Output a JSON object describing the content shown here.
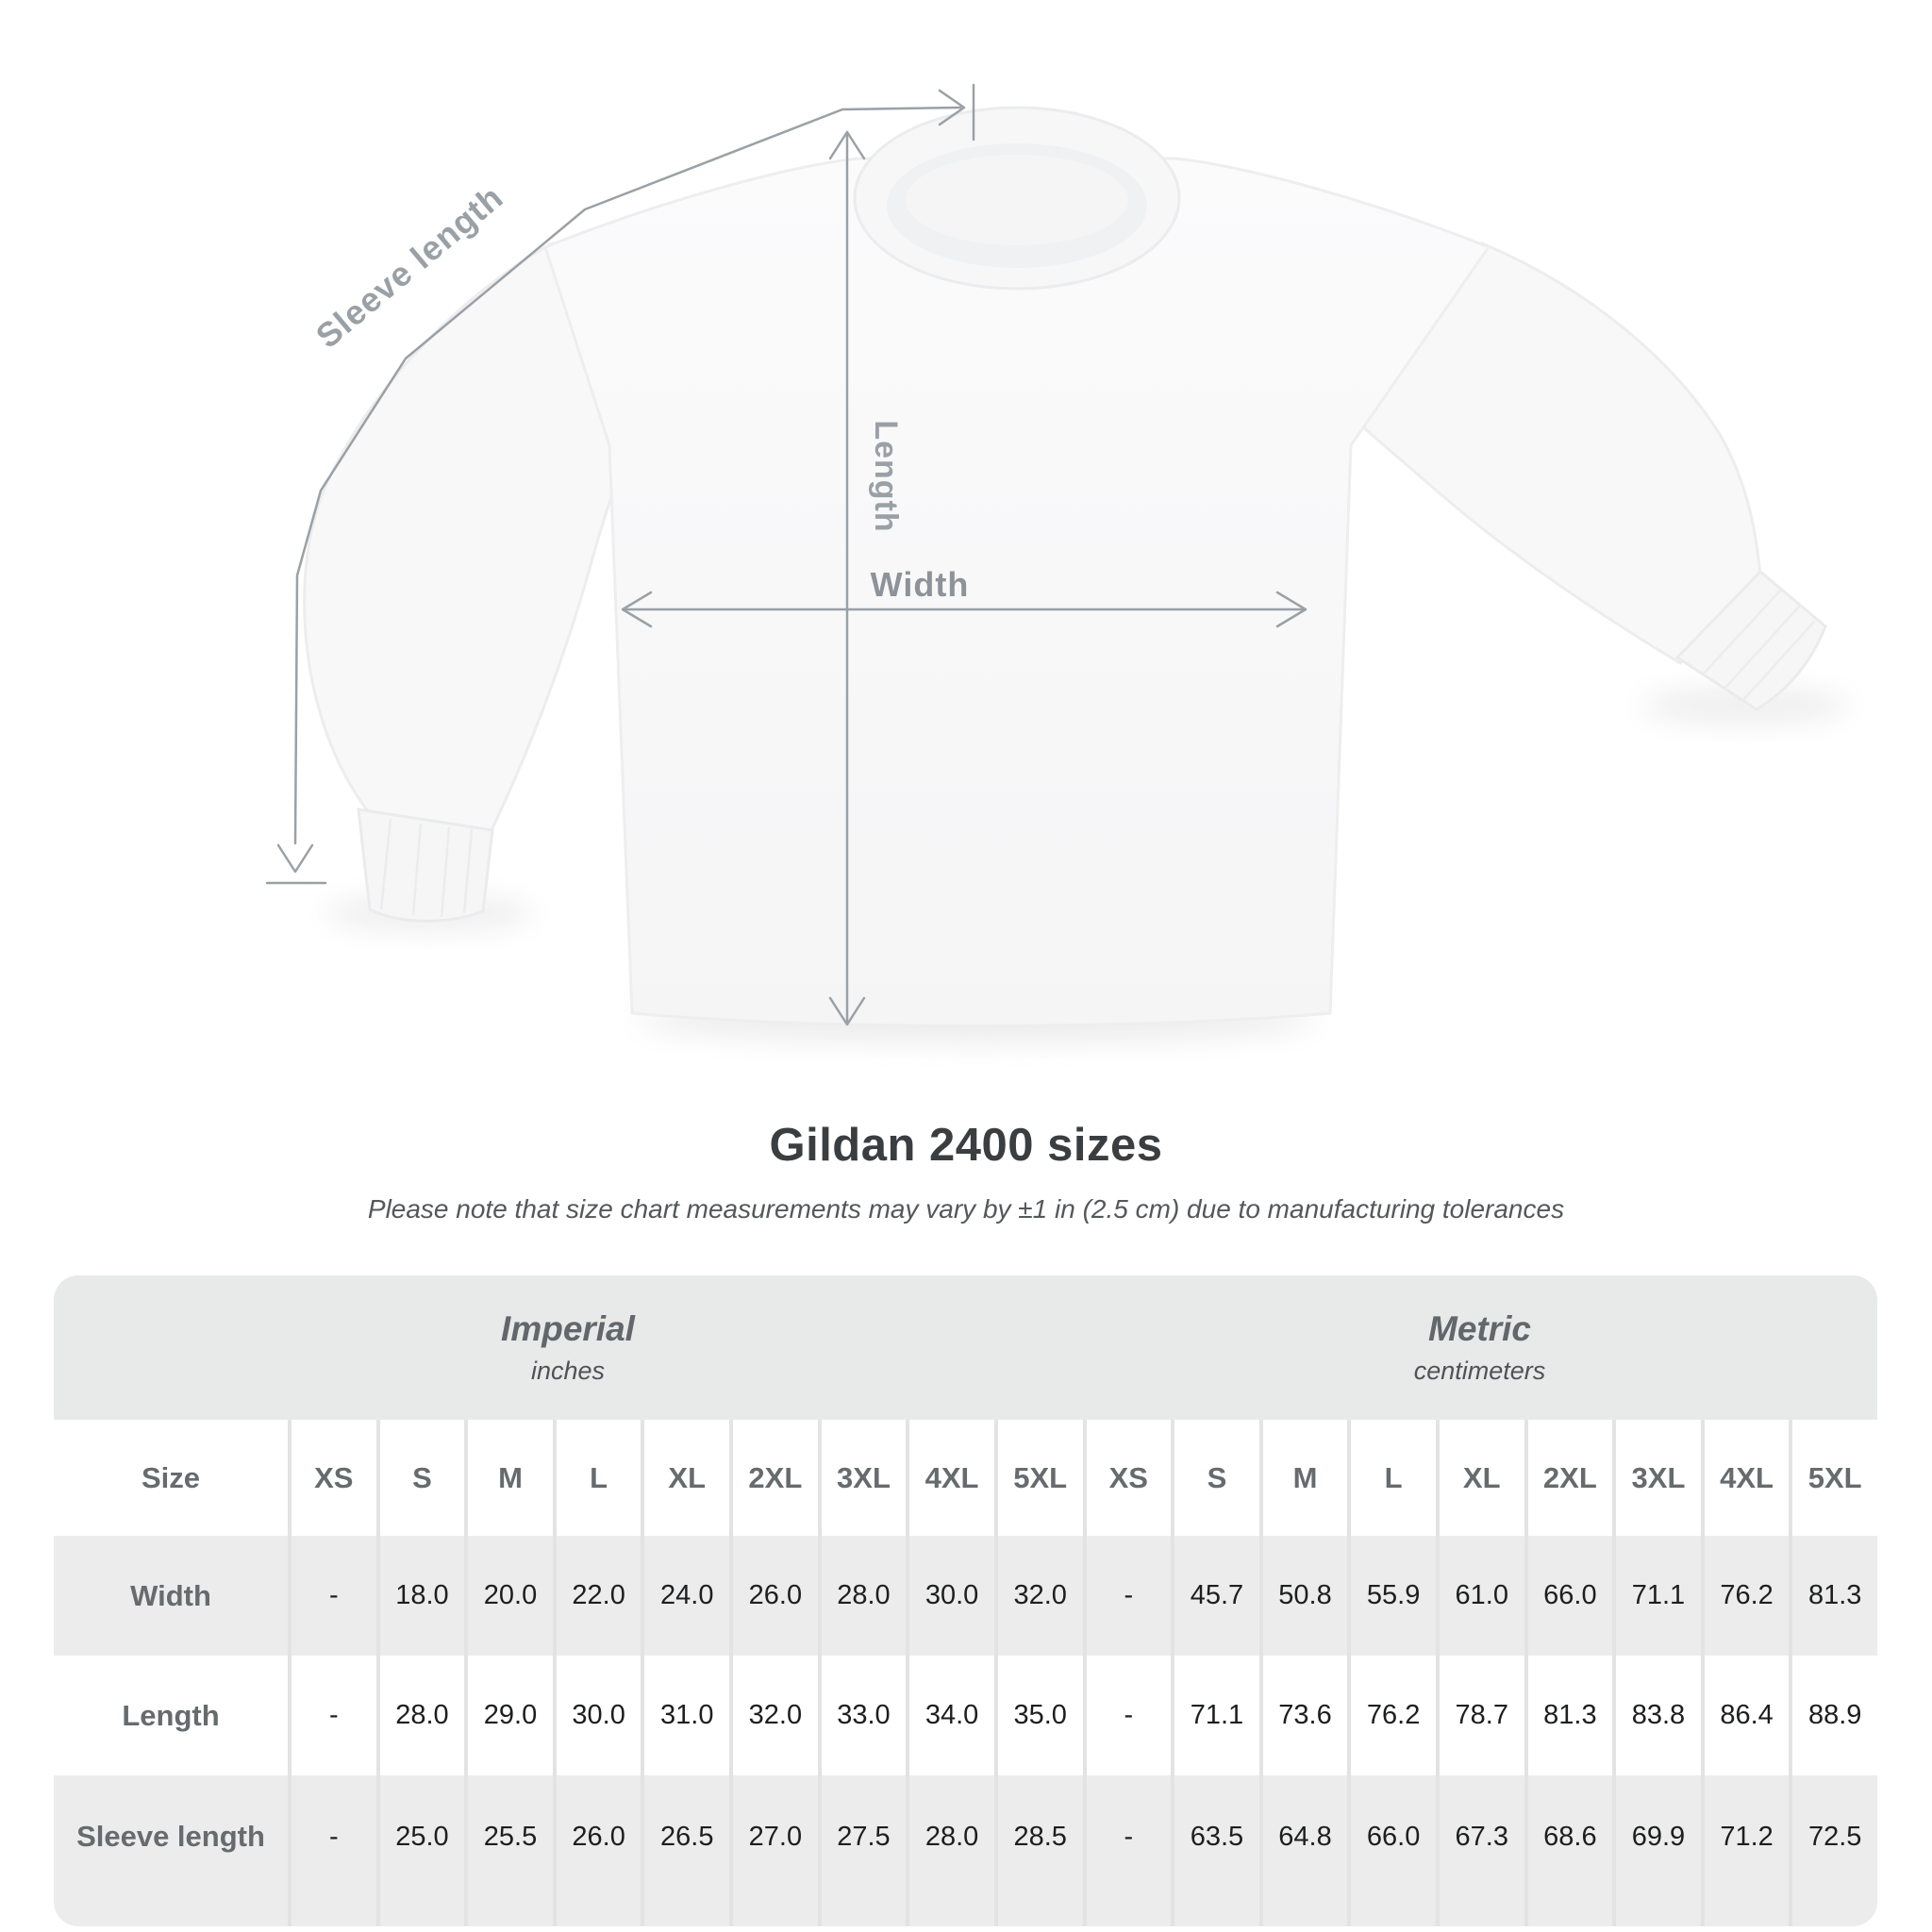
{
  "heading": {
    "title": "Gildan 2400 sizes",
    "subtitle": "Please note that size chart measurements may vary by ±1 in (2.5 cm) due to manufacturing tolerances"
  },
  "diagram": {
    "garment": "white long-sleeve t-shirt, front flat lay",
    "labels": {
      "sleeve_length": "Sleeve length",
      "length": "Length",
      "width": "Width"
    },
    "line_color": "#9aa1a6",
    "label_color": "#999fa4"
  },
  "table": {
    "sections": [
      {
        "title": "Imperial",
        "subtitle": "inches"
      },
      {
        "title": "Metric",
        "subtitle": "centimeters"
      }
    ],
    "size_label": "Size",
    "size_columns": [
      "XS",
      "S",
      "M",
      "L",
      "XL",
      "2XL",
      "3XL",
      "4XL",
      "5XL",
      "XS",
      "S",
      "M",
      "L",
      "XL",
      "2XL",
      "3XL",
      "4XL",
      "5XL"
    ],
    "rows": [
      {
        "label": "Width",
        "values": [
          "-",
          "18.0",
          "20.0",
          "22.0",
          "24.0",
          "26.0",
          "28.0",
          "30.0",
          "32.0",
          "-",
          "45.7",
          "50.8",
          "55.9",
          "61.0",
          "66.0",
          "71.1",
          "76.2",
          "81.3"
        ]
      },
      {
        "label": "Length",
        "values": [
          "-",
          "28.0",
          "29.0",
          "30.0",
          "31.0",
          "32.0",
          "33.0",
          "34.0",
          "35.0",
          "-",
          "71.1",
          "73.6",
          "76.2",
          "78.7",
          "81.3",
          "83.8",
          "86.4",
          "88.9"
        ]
      },
      {
        "label": "Sleeve length",
        "values": [
          "-",
          "25.0",
          "25.5",
          "26.0",
          "26.5",
          "27.0",
          "27.5",
          "28.0",
          "28.5",
          "-",
          "63.5",
          "64.8",
          "66.0",
          "67.3",
          "68.6",
          "69.9",
          "71.2",
          "72.5"
        ]
      }
    ]
  },
  "chart_data": {
    "type": "table",
    "title": "Gildan 2400 sizes",
    "note": "Size chart measurements may vary by ±1 in (2.5 cm) due to manufacturing tolerances",
    "sizes": [
      "XS",
      "S",
      "M",
      "L",
      "XL",
      "2XL",
      "3XL",
      "4XL",
      "5XL"
    ],
    "units": {
      "imperial": "inches",
      "metric": "centimeters"
    },
    "measurements": [
      {
        "name": "Width",
        "imperial_in": [
          null,
          18.0,
          20.0,
          22.0,
          24.0,
          26.0,
          28.0,
          30.0,
          32.0
        ],
        "metric_cm": [
          null,
          45.7,
          50.8,
          55.9,
          61.0,
          66.0,
          71.1,
          76.2,
          81.3
        ]
      },
      {
        "name": "Length",
        "imperial_in": [
          null,
          28.0,
          29.0,
          30.0,
          31.0,
          32.0,
          33.0,
          34.0,
          35.0
        ],
        "metric_cm": [
          null,
          71.1,
          73.6,
          76.2,
          78.7,
          81.3,
          83.8,
          86.4,
          88.9
        ]
      },
      {
        "name": "Sleeve length",
        "imperial_in": [
          null,
          25.0,
          25.5,
          26.0,
          26.5,
          27.0,
          27.5,
          28.0,
          28.5
        ],
        "metric_cm": [
          null,
          63.5,
          64.8,
          66.0,
          67.3,
          68.6,
          69.9,
          71.2,
          72.5
        ]
      }
    ]
  }
}
